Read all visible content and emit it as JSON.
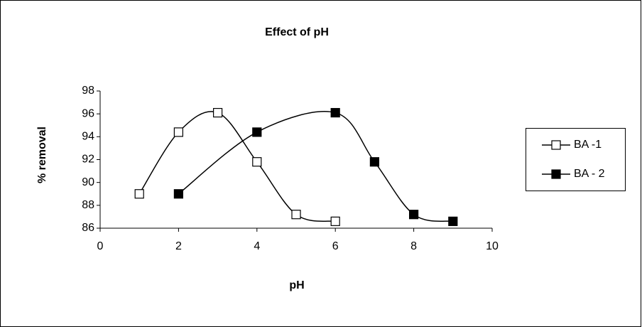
{
  "chart_data": {
    "type": "line",
    "title": "Effect of pH",
    "x_label": "pH",
    "y_label": "% removal",
    "series": [
      {
        "name": "BA -1",
        "color": "#ffffff",
        "x": [
          1,
          2,
          3,
          4,
          5,
          6
        ],
        "values": [
          89,
          94.4,
          96.1,
          91.8,
          87.2,
          86.6
        ]
      },
      {
        "name": "BA - 2",
        "color": "#000000",
        "x": [
          2,
          4,
          6,
          7,
          8,
          9
        ],
        "values": [
          89,
          94.4,
          96.1,
          91.8,
          87.2,
          86.6
        ]
      }
    ],
    "xlim": [
      0,
      10
    ],
    "xticks": [
      0,
      2,
      4,
      6,
      8,
      10
    ],
    "ylim": [
      86,
      98
    ],
    "yticks": [
      86,
      88,
      90,
      92,
      94,
      96,
      98
    ],
    "smooth": true,
    "legend": "right"
  }
}
